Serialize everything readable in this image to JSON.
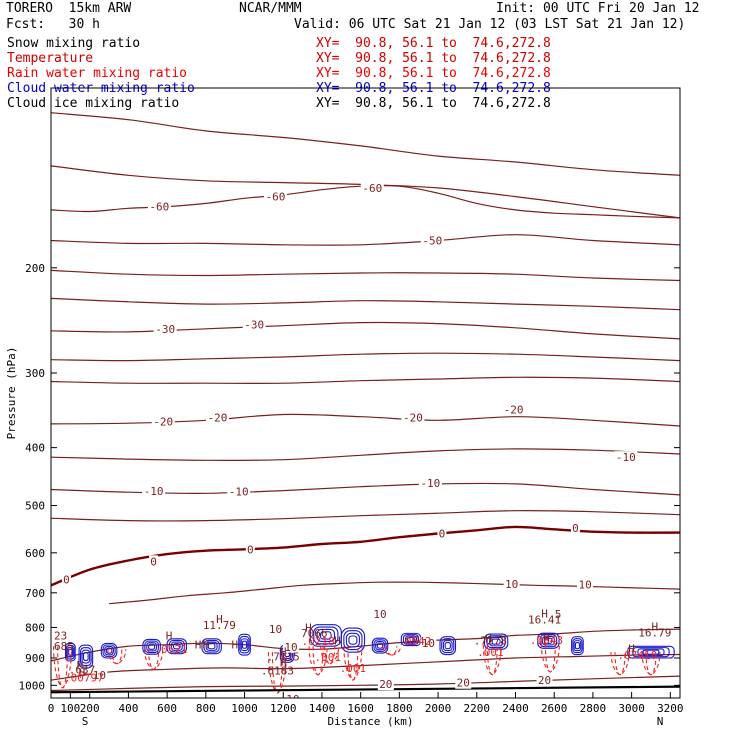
{
  "header": {
    "model": "TORERO  15km ARW",
    "center": "NCAR/MMM",
    "init": "Init: 00 UTC Fri 20 Jan 12",
    "fcst": "Fcst:   30 h",
    "valid": "Valid: 06 UTC Sat 21 Jan 12 (03 LST Sat 21 Jan 12)"
  },
  "fields": [
    {
      "name": "Snow mixing ratio",
      "xy": "XY=  90.8, 56.1 to  74.6,272.8",
      "color": "#000000"
    },
    {
      "name": "Temperature",
      "xy": "XY=  90.8, 56.1 to  74.6,272.8",
      "color": "#cc0000"
    },
    {
      "name": "Rain water mixing ratio",
      "xy": "XY=  90.8, 56.1 to  74.6,272.8",
      "color": "#ee0000"
    },
    {
      "name": "Cloud water mixing ratio",
      "xy": "XY=  90.8, 56.1 to  74.6,272.8",
      "color": "#0000cc"
    },
    {
      "name": "Cloud ice mixing ratio",
      "xy": "XY=  90.8, 56.1 to  74.6,272.8",
      "color": "#000000"
    }
  ],
  "colors": {
    "isotherm": "#7a1f1f",
    "freezing": "#7a0000",
    "cloud_water": "#1a1acc",
    "rain": "#ee2222",
    "ground": "#000000",
    "label_h": "#7a1f1f"
  },
  "chart_data": {
    "type": "cross-section contour",
    "xlabel": "Distance (km)",
    "ylabel": "Pressure (hPa)",
    "xlim": [
      0,
      3250
    ],
    "ylim": [
      100,
      1050
    ],
    "y_log": true,
    "x_ticks": [
      "0",
      "100",
      "200",
      "400",
      "600",
      "800",
      "1000",
      "1200",
      "1400",
      "1600",
      "1800",
      "2000",
      "2200",
      "2400",
      "2600",
      "2800",
      "3000",
      "3200"
    ],
    "x_tick_values": [
      0,
      100,
      200,
      400,
      600,
      800,
      1000,
      1200,
      1400,
      1600,
      1800,
      2000,
      2200,
      2400,
      2600,
      2800,
      3000,
      3200
    ],
    "y_ticks": [
      "200",
      "300",
      "400",
      "500",
      "600",
      "700",
      "800",
      "900",
      "1000"
    ],
    "y_tick_values": [
      200,
      300,
      400,
      500,
      600,
      700,
      800,
      900,
      1000
    ],
    "end_labels": {
      "left": "S",
      "right": "N"
    },
    "isotherms": [
      {
        "x": [
          0,
          400,
          800,
          1200,
          1600,
          2000,
          2400,
          2800,
          3250
        ],
        "p": [
          110,
          113,
          118,
          121,
          125,
          130,
          133,
          137,
          140
        ]
      },
      {
        "x": [
          0,
          400,
          800,
          1200,
          1600,
          2000,
          2400,
          2800,
          3250
        ],
        "p": [
          135,
          140,
          143,
          144,
          145,
          147,
          152,
          158,
          165
        ]
      },
      {
        "value": -60,
        "x": [
          0,
          200,
          400,
          600,
          800,
          1000,
          1200,
          1400,
          1600,
          1800,
          2000,
          2200,
          2400,
          2600,
          2800,
          3000,
          3250
        ],
        "p": [
          160,
          161,
          159,
          158,
          156,
          153,
          151,
          148,
          146,
          146,
          150,
          156,
          160,
          162,
          163,
          164,
          165
        ]
      },
      {
        "value": -50,
        "x": [
          0,
          400,
          800,
          1200,
          1600,
          2000,
          2400,
          2800,
          3250
        ],
        "p": [
          180,
          182,
          182,
          183,
          183,
          180,
          176,
          180,
          183
        ]
      },
      {
        "x": [
          0,
          400,
          800,
          1200,
          1600,
          2000,
          2400,
          2800,
          3250
        ],
        "p": [
          202,
          205,
          206,
          205,
          204,
          204,
          205,
          208,
          210
        ]
      },
      {
        "x": [
          0,
          400,
          800,
          1200,
          1600,
          2000,
          2400,
          2800,
          3250
        ],
        "p": [
          225,
          228,
          230,
          229,
          227,
          228,
          230,
          232,
          235
        ]
      },
      {
        "value": -30,
        "x": [
          0,
          400,
          800,
          1200,
          1600,
          2000,
          2400,
          2800,
          3250
        ],
        "p": [
          255,
          256,
          253,
          250,
          247,
          248,
          252,
          258,
          263
        ]
      },
      {
        "x": [
          0,
          400,
          800,
          1200,
          1600,
          2000,
          2400,
          2800,
          3250
        ],
        "p": [
          285,
          286,
          284,
          282,
          279,
          278,
          279,
          282,
          286
        ]
      },
      {
        "x": [
          0,
          400,
          800,
          1200,
          1600,
          2000,
          2400,
          2800,
          3250
        ],
        "p": [
          310,
          312,
          312,
          312,
          309,
          307,
          305,
          306,
          310
        ]
      },
      {
        "value": -20,
        "x": [
          0,
          400,
          800,
          1200,
          1600,
          2000,
          2400,
          2800,
          3250
        ],
        "p": [
          365,
          364,
          360,
          352,
          355,
          360,
          355,
          360,
          368
        ]
      },
      {
        "x": [
          0,
          400,
          800,
          1200,
          1600,
          2000,
          2400,
          2800,
          3250
        ],
        "p": [
          415,
          418,
          420,
          419,
          412,
          405,
          402,
          404,
          410
        ]
      },
      {
        "value": -10,
        "x": [
          0,
          400,
          800,
          1200,
          1600,
          2000,
          2400,
          2800,
          3250
        ],
        "p": [
          470,
          475,
          477,
          472,
          465,
          460,
          460,
          470,
          480
        ]
      },
      {
        "x": [
          0,
          400,
          800,
          1200,
          1600,
          2000,
          2400,
          2800,
          3250
        ],
        "p": [
          525,
          530,
          530,
          526,
          520,
          515,
          510,
          512,
          518
        ]
      },
      {
        "value": 0,
        "x": [
          0,
          200,
          400,
          600,
          800,
          1000,
          1200,
          1400,
          1600,
          1800,
          2000,
          2200,
          2400,
          2600,
          2800,
          3000,
          3250
        ],
        "p": [
          680,
          640,
          618,
          603,
          595,
          592,
          588,
          580,
          575,
          565,
          557,
          550,
          543,
          548,
          553,
          555,
          555
        ],
        "bold": true
      },
      {
        "value": 10,
        "x": [
          300,
          500,
          700,
          900,
          1100,
          1300,
          1500,
          1700,
          1900,
          2100,
          2300,
          2500,
          2700,
          2900,
          3100,
          3250
        ],
        "p": [
          730,
          720,
          708,
          700,
          690,
          680,
          675,
          672,
          672,
          674,
          677,
          680,
          682,
          685,
          688,
          690
        ]
      },
      {
        "value": 10,
        "x": [
          0,
          200,
          400,
          600,
          800,
          1000,
          1200,
          1400,
          1600,
          1800,
          2000,
          2200,
          2400,
          2600,
          2800,
          3000,
          3250
        ],
        "p": [
          910,
          880,
          860,
          855,
          850,
          855,
          868,
          870,
          860,
          848,
          840,
          835,
          825,
          820,
          812,
          808,
          805
        ]
      },
      {
        "value": 20,
        "x": [
          0,
          300,
          600,
          900,
          1200,
          1500,
          1800,
          2100,
          2400,
          2700,
          3000,
          3250
        ],
        "p": [
          980,
          950,
          940,
          935,
          938,
          930,
          920,
          910,
          900,
          895,
          890,
          888
        ]
      },
      {
        "value": 20,
        "x": [
          0,
          400,
          800,
          1200,
          1600,
          2000,
          2400,
          2800,
          3250
        ],
        "p": [
          1020,
          1012,
          1005,
          1003,
          1000,
          995,
          985,
          975,
          965
        ]
      }
    ],
    "contour_labels": [
      {
        "text": "-60",
        "x": 560,
        "p": 158
      },
      {
        "text": "-60",
        "x": 1160,
        "p": 152
      },
      {
        "text": "-60",
        "x": 1660,
        "p": 147
      },
      {
        "text": "-50",
        "x": 1970,
        "p": 180
      },
      {
        "text": "-30",
        "x": 590,
        "p": 253
      },
      {
        "text": "-30",
        "x": 1050,
        "p": 249
      },
      {
        "text": "-20",
        "x": 580,
        "p": 362
      },
      {
        "text": "-20",
        "x": 860,
        "p": 356
      },
      {
        "text": "-20",
        "x": 1870,
        "p": 356
      },
      {
        "text": "-20",
        "x": 2390,
        "p": 345
      },
      {
        "text": "-10",
        "x": 530,
        "p": 473
      },
      {
        "text": "-10",
        "x": 970,
        "p": 474
      },
      {
        "text": "-10",
        "x": 1960,
        "p": 458
      },
      {
        "text": "-10",
        "x": 2970,
        "p": 415
      },
      {
        "text": "0",
        "x": 80,
        "p": 665
      },
      {
        "text": "0",
        "x": 530,
        "p": 620
      },
      {
        "text": "0",
        "x": 1030,
        "p": 592
      },
      {
        "text": "0",
        "x": 2020,
        "p": 557
      },
      {
        "text": "0",
        "x": 2710,
        "p": 545
      },
      {
        "text": "10",
        "x": 2380,
        "p": 676
      },
      {
        "text": "10",
        "x": 2760,
        "p": 678
      },
      {
        "text": "10",
        "x": 1700,
        "p": 760
      },
      {
        "text": "10",
        "x": 1160,
        "p": 805
      },
      {
        "text": "10",
        "x": 1240,
        "p": 862
      },
      {
        "text": "10",
        "x": 1950,
        "p": 850
      },
      {
        "text": "10",
        "x": 250,
        "p": 960
      },
      {
        "text": "20",
        "x": 1730,
        "p": 995
      },
      {
        "text": "20",
        "x": 2130,
        "p": 990
      },
      {
        "text": "20",
        "x": 2550,
        "p": 980
      }
    ],
    "extrema": [
      {
        "text": "H",
        "x": 870,
        "p": 775
      },
      {
        "text": "11.79",
        "x": 870,
        "p": 793
      },
      {
        "text": "H",
        "x": 2550,
        "p": 758
      },
      {
        "text": "16.41",
        "x": 2550,
        "p": 776
      },
      {
        "text": "H",
        "x": 3120,
        "p": 797
      },
      {
        "text": "16.79",
        "x": 3120,
        "p": 815
      },
      {
        "text": "H",
        "x": 1330,
        "p": 800
      },
      {
        "text": "7066",
        "x": 1360,
        "p": 818
      },
      {
        "text": ".0218",
        "x": 1380,
        "p": 843
      },
      {
        "text": "H",
        "x": 1880,
        "p": 840
      },
      {
        "text": ".0542",
        "x": 1880,
        "p": 843
      },
      {
        "text": "H",
        "x": 2260,
        "p": 835
      },
      {
        "text": ".7278",
        "x": 2270,
        "p": 842
      },
      {
        "text": "H",
        "x": 2560,
        "p": 840
      },
      {
        "text": ".0843",
        "x": 2560,
        "p": 840
      },
      {
        "text": "H",
        "x": 1480,
        "p": 842
      },
      {
        "text": "H",
        "x": 2560,
        "p": 832
      },
      {
        "text": "H",
        "x": 3000,
        "p": 868
      },
      {
        "text": ".07410",
        "x": 3030,
        "p": 890
      },
      {
        "text": "H",
        "x": 950,
        "p": 855
      },
      {
        "text": "H",
        "x": 760,
        "p": 855
      },
      {
        "text": "H",
        "x": 1200,
        "p": 878
      },
      {
        "text": ".7115",
        "x": 1200,
        "p": 895
      },
      {
        "text": ".6183",
        "x": 1170,
        "p": 945
      },
      {
        "text": "H",
        "x": 610,
        "p": 825
      },
      {
        "text": ".0521",
        "x": 620,
        "p": 870
      },
      {
        "text": "H",
        "x": 800,
        "p": 855
      },
      {
        "text": "H",
        "x": 150,
        "p": 925
      },
      {
        "text": ".637",
        "x": 160,
        "p": 940
      },
      {
        "text": "H",
        "x": 160,
        "p": 950
      },
      {
        "text": ".00797",
        "x": 170,
        "p": 970
      },
      {
        "text": "23",
        "x": 50,
        "p": 825
      },
      {
        "text": ".685",
        "x": 50,
        "p": 860
      },
      {
        "text": ".001",
        "x": 1430,
        "p": 897
      },
      {
        "text": ".001",
        "x": 1560,
        "p": 935
      },
      {
        "text": ".001",
        "x": 2270,
        "p": 880
      },
      {
        "text": "H",
        "x": 1200,
        "p": 915
      },
      {
        "text": "10",
        "x": 1250,
        "p": 1055
      },
      {
        "text": "5",
        "x": 2620,
        "p": 760
      }
    ],
    "cloud_water_cells": [
      {
        "x": 100,
        "p": 880,
        "rx": 25,
        "rp": 30
      },
      {
        "x": 180,
        "p": 895,
        "rx": 35,
        "rp": 40
      },
      {
        "x": 300,
        "p": 875,
        "rx": 40,
        "rp": 25
      },
      {
        "x": 520,
        "p": 862,
        "rx": 45,
        "rp": 25
      },
      {
        "x": 650,
        "p": 860,
        "rx": 50,
        "rp": 25
      },
      {
        "x": 830,
        "p": 860,
        "rx": 50,
        "rp": 25
      },
      {
        "x": 1000,
        "p": 855,
        "rx": 30,
        "rp": 35
      },
      {
        "x": 1220,
        "p": 885,
        "rx": 35,
        "rp": 30
      },
      {
        "x": 1420,
        "p": 825,
        "rx": 80,
        "rp": 35
      },
      {
        "x": 1560,
        "p": 840,
        "rx": 60,
        "rp": 40
      },
      {
        "x": 1700,
        "p": 858,
        "rx": 40,
        "rp": 25
      },
      {
        "x": 1860,
        "p": 838,
        "rx": 50,
        "rp": 20
      },
      {
        "x": 2050,
        "p": 858,
        "rx": 40,
        "rp": 30
      },
      {
        "x": 2300,
        "p": 845,
        "rx": 60,
        "rp": 25
      },
      {
        "x": 2570,
        "p": 842,
        "rx": 55,
        "rp": 25
      },
      {
        "x": 2720,
        "p": 858,
        "rx": 30,
        "rp": 30
      },
      {
        "x": 3100,
        "p": 880,
        "rx": 120,
        "rp": 20
      }
    ],
    "rain_cells": [
      {
        "x": 60,
        "p1": 860,
        "p2": 1010
      },
      {
        "x": 340,
        "p1": 870,
        "p2": 920
      },
      {
        "x": 530,
        "p1": 870,
        "p2": 940
      },
      {
        "x": 1170,
        "p1": 880,
        "p2": 1030
      },
      {
        "x": 1380,
        "p1": 860,
        "p2": 960
      },
      {
        "x": 1440,
        "p1": 860,
        "p2": 920
      },
      {
        "x": 1560,
        "p1": 860,
        "p2": 980
      },
      {
        "x": 1760,
        "p1": 860,
        "p2": 890
      },
      {
        "x": 2280,
        "p1": 855,
        "p2": 960
      },
      {
        "x": 2580,
        "p1": 850,
        "p2": 950
      },
      {
        "x": 2940,
        "p1": 880,
        "p2": 960
      },
      {
        "x": 3100,
        "p1": 880,
        "p2": 960
      }
    ],
    "ground": {
      "x": [
        0,
        3250
      ],
      "p": [
        1027,
        1005
      ]
    },
    "grid": false,
    "legend": "top-left"
  }
}
